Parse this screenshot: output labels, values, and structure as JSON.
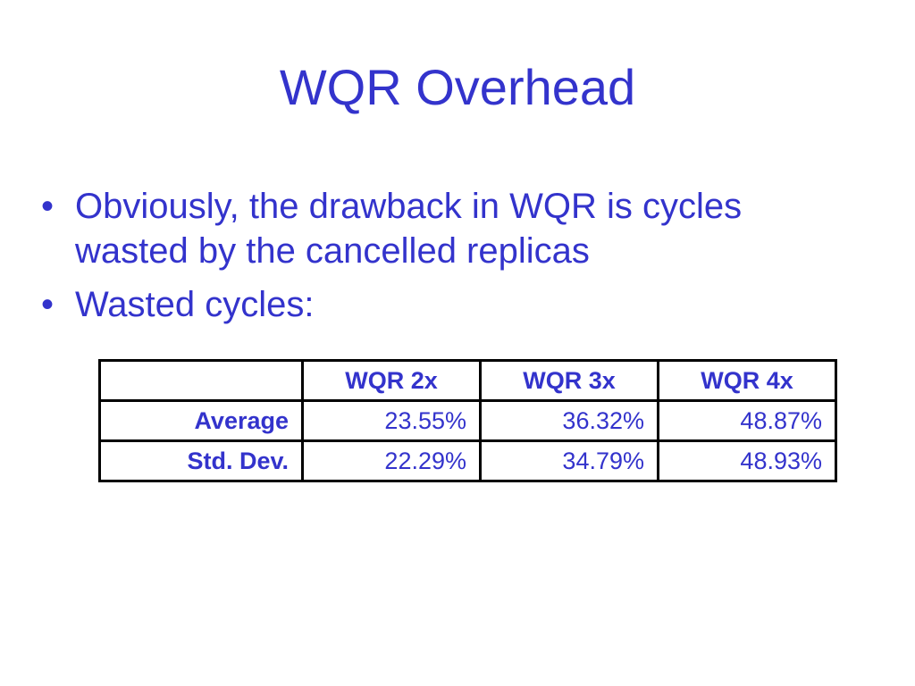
{
  "slide": {
    "title": "WQR Overhead",
    "bullets": [
      "Obviously, the drawback in WQR is cycles wasted by the cancelled replicas",
      "Wasted cycles:"
    ],
    "bullet_marker": "•"
  },
  "table": {
    "corner": "",
    "columns": [
      "WQR 2x",
      "WQR 3x",
      "WQR 4x"
    ],
    "rows": [
      {
        "label": "Average",
        "values": [
          "23.55%",
          "36.32%",
          "48.87%"
        ]
      },
      {
        "label": "Std. Dev.",
        "values": [
          "22.29%",
          "34.79%",
          "48.93%"
        ]
      }
    ]
  },
  "colors": {
    "text": "#3333cc",
    "border": "#000000",
    "background": "#ffffff"
  }
}
